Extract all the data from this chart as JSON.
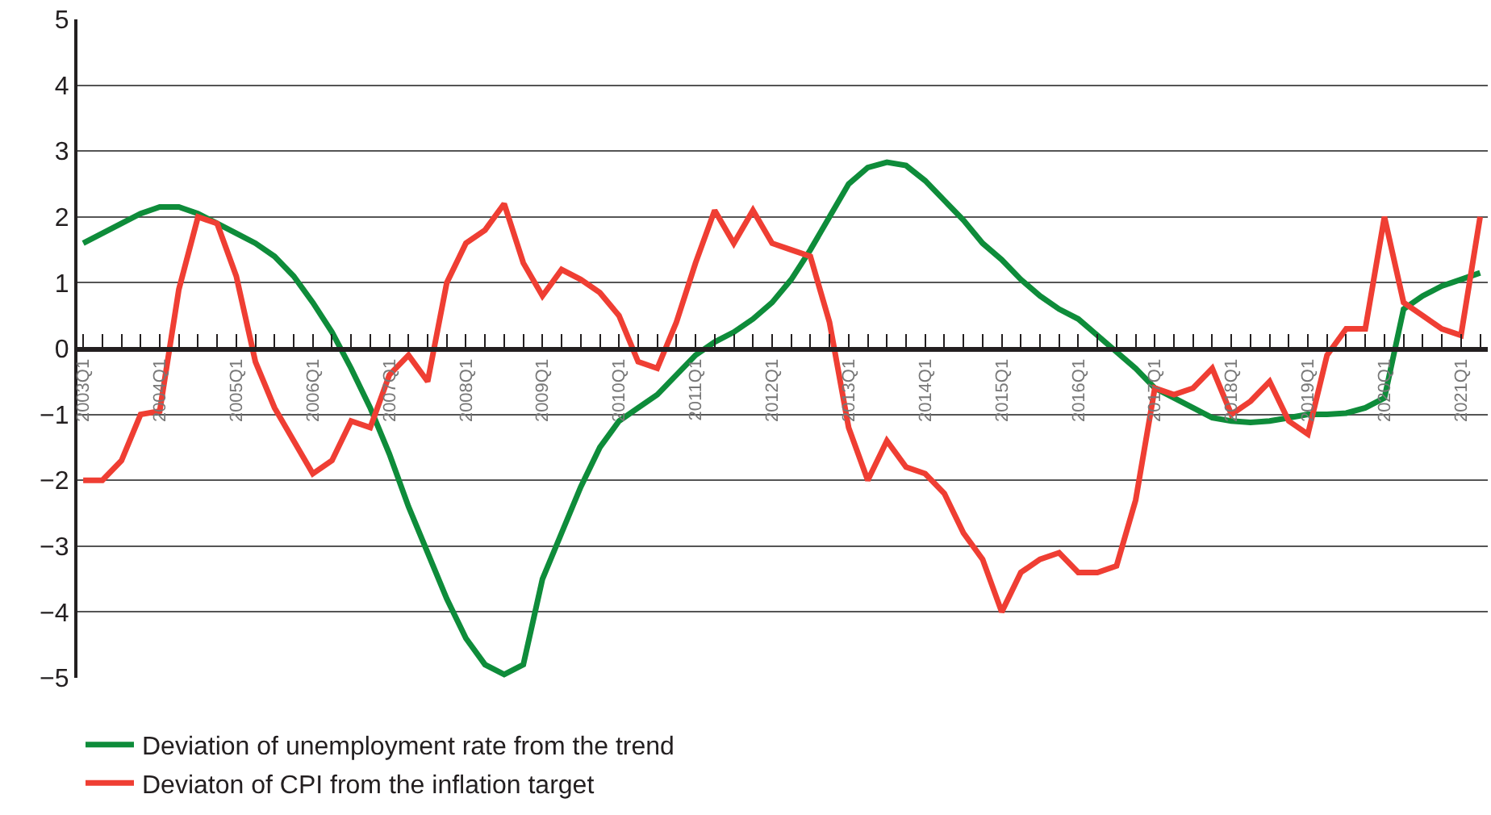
{
  "chart_data": {
    "type": "line",
    "categories": [
      "2003Q1",
      null,
      null,
      null,
      "2004Q1",
      null,
      null,
      null,
      "2005Q1",
      null,
      null,
      null,
      "2006Q1",
      null,
      null,
      null,
      "2007Q1",
      null,
      null,
      null,
      "2008Q1",
      null,
      null,
      null,
      "2009Q1",
      null,
      null,
      null,
      "2010Q1",
      null,
      null,
      null,
      "2011Q1",
      null,
      null,
      null,
      "2012Q1",
      null,
      null,
      null,
      "2013Q1",
      null,
      null,
      null,
      "2014Q1",
      null,
      null,
      null,
      "2015Q1",
      null,
      null,
      null,
      "2016Q1",
      null,
      null,
      null,
      "2017Q1",
      null,
      null,
      null,
      "2018Q1",
      null,
      null,
      null,
      "2019Q1",
      null,
      null,
      null,
      "2020Q1",
      null,
      null,
      null,
      "2021Q1",
      null
    ],
    "series": [
      {
        "name": "Deviation of unemployment rate from the trend",
        "color": "#0e8c3a",
        "values": [
          1.6,
          1.75,
          1.9,
          2.05,
          2.15,
          2.15,
          2.05,
          1.9,
          1.75,
          1.6,
          1.4,
          1.1,
          0.7,
          0.25,
          -0.3,
          -0.9,
          -1.6,
          -2.4,
          -3.1,
          -3.8,
          -4.4,
          -4.8,
          -4.95,
          -4.8,
          -3.5,
          -2.8,
          -2.1,
          -1.5,
          -1.1,
          -0.9,
          -0.7,
          -0.4,
          -0.1,
          0.1,
          0.25,
          0.45,
          0.7,
          1.05,
          1.5,
          2.0,
          2.5,
          2.75,
          2.83,
          2.78,
          2.55,
          2.25,
          1.95,
          1.6,
          1.35,
          1.05,
          0.8,
          0.6,
          0.45,
          0.2,
          -0.05,
          -0.3,
          -0.6,
          -0.75,
          -0.9,
          -1.05,
          -1.1,
          -1.12,
          -1.1,
          -1.05,
          -1.0,
          -1.0,
          -0.98,
          -0.9,
          -0.75,
          0.6,
          0.8,
          0.95,
          1.05,
          1.15
        ]
      },
      {
        "name": "Deviaton of CPI from the inflation target",
        "color": "#ef3e33",
        "values": [
          -2.0,
          -2.0,
          -1.7,
          -1.0,
          -0.95,
          0.9,
          2.0,
          1.9,
          1.1,
          -0.2,
          -0.9,
          -1.4,
          -1.9,
          -1.7,
          -1.1,
          -1.2,
          -0.4,
          -0.1,
          -0.5,
          1.0,
          1.6,
          1.8,
          2.2,
          1.3,
          0.8,
          1.2,
          1.05,
          0.85,
          0.5,
          -0.2,
          -0.3,
          0.4,
          1.3,
          2.1,
          1.6,
          2.1,
          1.6,
          1.5,
          1.4,
          0.4,
          -1.2,
          -2.0,
          -1.4,
          -1.8,
          -1.9,
          -2.2,
          -2.8,
          -3.2,
          -4.0,
          -3.4,
          -3.2,
          -3.1,
          -3.4,
          -3.4,
          -3.3,
          -2.3,
          -0.6,
          -0.7,
          -0.6,
          -0.3,
          -1.0,
          -0.8,
          -0.5,
          -1.1,
          -1.3,
          -0.1,
          0.3,
          0.3,
          2.0,
          0.7,
          0.5,
          0.3,
          0.2,
          2.0
        ]
      }
    ],
    "ylim": [
      -5,
      5
    ],
    "yticks": [
      {
        "value": -5,
        "label": "−5"
      },
      {
        "value": -4,
        "label": "−4"
      },
      {
        "value": -3,
        "label": "−3"
      },
      {
        "value": -2,
        "label": "−2"
      },
      {
        "value": -1,
        "label": "−1"
      },
      0,
      1,
      2,
      3,
      4,
      5
    ],
    "grid": "y",
    "legend": "bottom left",
    "marker": "none",
    "line_style": "solid"
  }
}
